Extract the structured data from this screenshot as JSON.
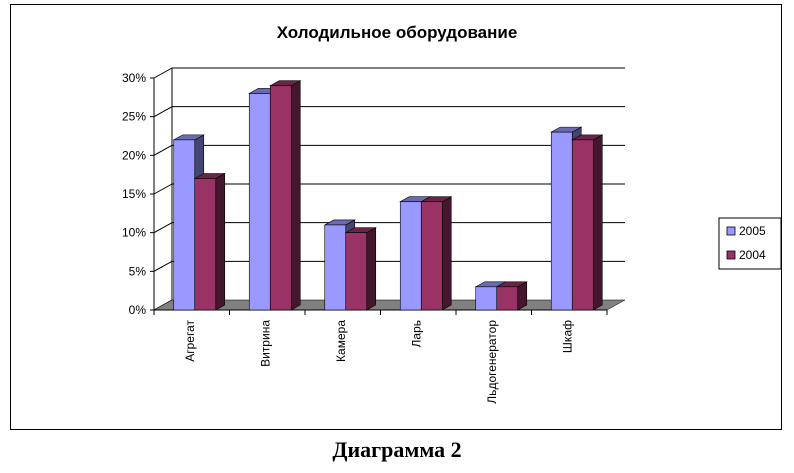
{
  "chart_data": {
    "type": "bar",
    "title": "Холодильное оборудование",
    "categories": [
      "Агрегат",
      "Витрина",
      "Камера",
      "Ларь",
      "Льдогенератор",
      "Шкаф"
    ],
    "series": [
      {
        "name": "2005",
        "values": [
          0.22,
          0.28,
          0.11,
          0.14,
          0.03,
          0.23
        ],
        "color": "#9999ff"
      },
      {
        "name": "2004",
        "values": [
          0.17,
          0.29,
          0.1,
          0.14,
          0.03,
          0.22
        ],
        "color": "#993366"
      }
    ],
    "y_ticks": [
      "0%",
      "5%",
      "10%",
      "15%",
      "20%",
      "25%",
      "30%"
    ],
    "ylim": [
      0,
      0.3
    ],
    "grid": true,
    "legend_position": "right",
    "style": "3d-clustered-column"
  },
  "caption": "Диаграмма 2"
}
